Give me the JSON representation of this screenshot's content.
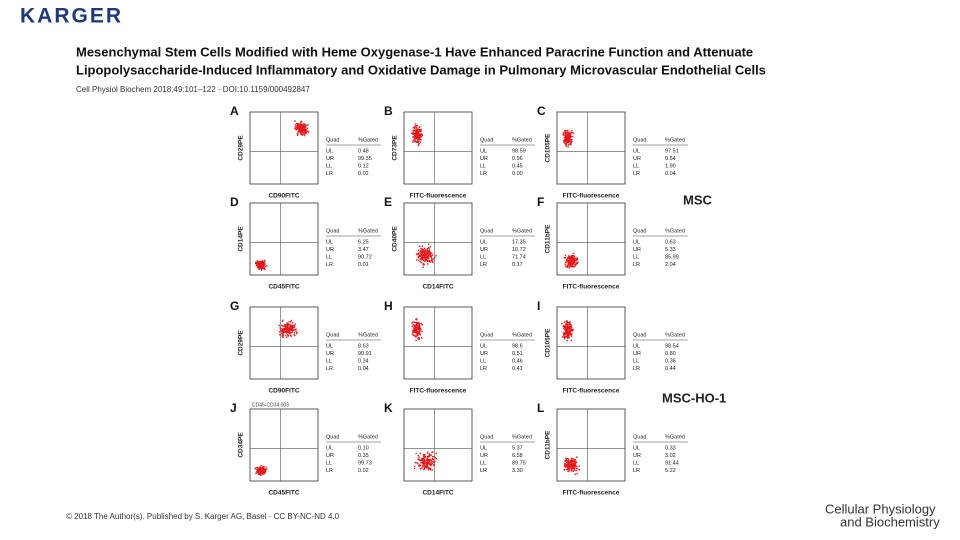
{
  "header": {
    "logo": "KARGER",
    "title_lines": [
      "Mesenchymal Stem Cells Modified with Heme Oxygenase-1 Have Enhanced Paracrine Function and Attenuate",
      "Lipopolysaccharide-Induced Inflammatory and Oxidative Damage in Pulmonary Microvascular Endothelial Cells"
    ],
    "citation": "Cell Physiol Biochem 2018;49:101–122 · DOI:10.1159/000492847"
  },
  "figure": {
    "quad_header": [
      "Quad",
      "%Gated"
    ],
    "quad_names": [
      "UL",
      "UR",
      "LL",
      "LR"
    ],
    "panels": [
      {
        "letter": "A",
        "x_label": "CD90FITC",
        "y_label": "CD29PE",
        "values": [
          "0.48",
          "99.35",
          "0.12",
          "0.02"
        ]
      },
      {
        "letter": "B",
        "x_label": "FITC-fluorescence",
        "y_label": "CD73PE",
        "values": [
          "98.59",
          "0.96",
          "0.45",
          "0.00"
        ]
      },
      {
        "letter": "C",
        "x_label": "FITC-fluorescence",
        "y_label": "CD105PE",
        "values": [
          "97.51",
          "0.54",
          "1.90",
          "0.04"
        ]
      },
      {
        "letter": "D",
        "x_label": "CD45FITC",
        "y_label": "CD14PE",
        "values": [
          "6.25",
          "3.47",
          "90.72",
          "0.01"
        ]
      },
      {
        "letter": "E",
        "x_label": "CD14FITC",
        "y_label": "CD40PE",
        "values": [
          "17.35",
          "10.72",
          "71.74",
          "0.17"
        ]
      },
      {
        "letter": "F",
        "x_label": "FITC-fluorescence",
        "y_label": "CD11bPE",
        "values": [
          "0.63",
          "5.33",
          "85.99",
          "2.04"
        ]
      },
      {
        "letter": "G",
        "x_label": "CD90FITC",
        "y_label": "CD29PE",
        "values": [
          "8.63",
          "90.91",
          "0.34",
          "0.04"
        ]
      },
      {
        "letter": "H",
        "x_label": "FITC-fluorescence",
        "values": [
          "98.6",
          "0.51",
          "0.46",
          "0.41"
        ]
      },
      {
        "letter": "I",
        "x_label": "FITC-fluorescence",
        "y_label": "CD105PE",
        "values": [
          "98.54",
          "0.80",
          "0.36",
          "0.44"
        ]
      },
      {
        "letter": "J",
        "x_label": "CD45FITC",
        "y_label": "CD34PE",
        "inner_label": "CD45-CD34.003",
        "values": [
          "0.10",
          "0.35",
          "99.73",
          "0.02"
        ]
      },
      {
        "letter": "K",
        "x_label": "CD14FITC",
        "values": [
          "5.37",
          "6.58",
          "89.75",
          "3.30"
        ]
      },
      {
        "letter": "L",
        "x_label": "FITC-fluorescence",
        "y_label": "CD11bPE",
        "values": [
          "0.33",
          "3.02",
          "91.44",
          "5.22"
        ]
      }
    ],
    "group_labels": [
      "MSC",
      "MSC-HO-1"
    ]
  },
  "footer": {
    "copyright": "© 2018 The Author(s). Published by S. Karger AG, Basel · CC BY-NC-ND 4.0",
    "journal": [
      "Cellular Physiology",
      "and Biochemistry"
    ]
  }
}
